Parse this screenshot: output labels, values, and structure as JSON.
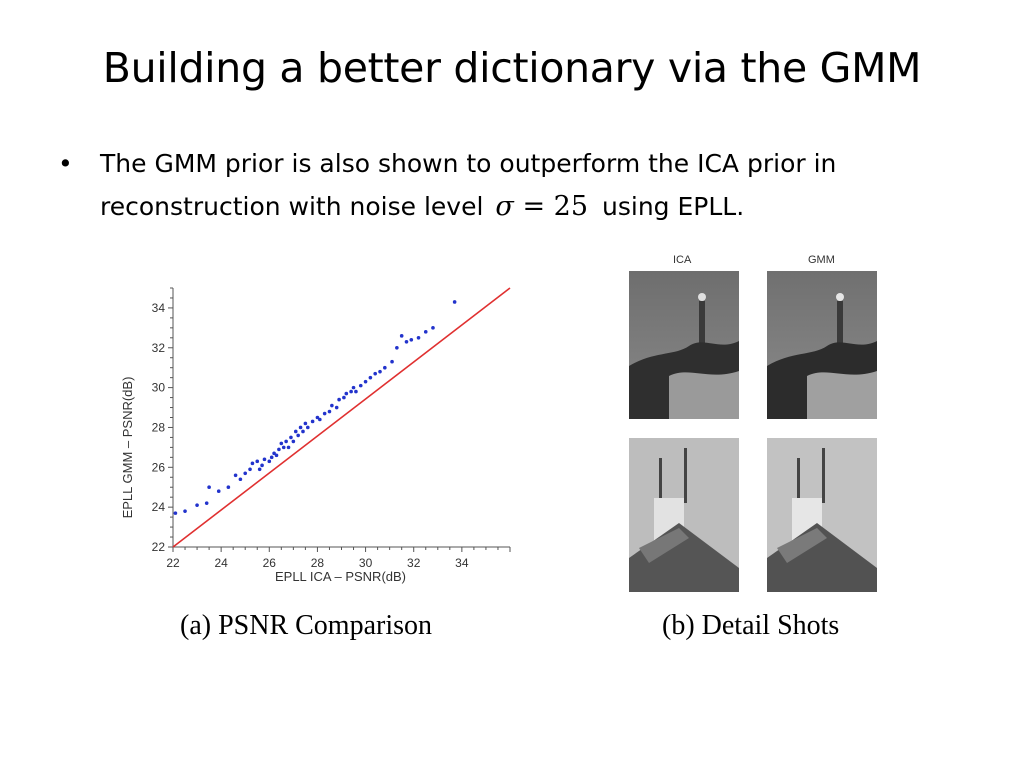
{
  "slide": {
    "title": "Building a better dictionary via the GMM",
    "bullet_symbol": "•",
    "bullet_text_before": "The GMM prior is also shown to outperform the ICA prior in reconstruction with noise level",
    "math_sigma": "σ",
    "math_rest": "= 25",
    "bullet_text_after": "using EPLL."
  },
  "figure_a": {
    "caption": "(a) PSNR Comparison"
  },
  "figure_b": {
    "caption": "(b) Detail Shots",
    "col_ica": "ICA",
    "col_gmm": "GMM"
  },
  "chart_data": {
    "type": "scatter",
    "xlabel": "EPLL ICA – PSNR(dB)",
    "ylabel": "EPLL GMM – PSNR(dB)",
    "xlim": [
      22,
      36
    ],
    "ylim": [
      22,
      35
    ],
    "xticks": [
      22,
      24,
      26,
      28,
      30,
      32,
      34
    ],
    "yticks": [
      22,
      24,
      26,
      28,
      30,
      32,
      34
    ],
    "reference_line": {
      "type": "y=x",
      "color": "#e03030"
    },
    "point_color": "#2233cc",
    "grid": false,
    "points": [
      [
        22.1,
        23.7
      ],
      [
        22.5,
        23.8
      ],
      [
        23.0,
        24.1
      ],
      [
        23.4,
        24.2
      ],
      [
        23.5,
        25.0
      ],
      [
        23.9,
        24.8
      ],
      [
        24.3,
        25.0
      ],
      [
        24.6,
        25.6
      ],
      [
        24.8,
        25.4
      ],
      [
        25.0,
        25.7
      ],
      [
        25.2,
        25.9
      ],
      [
        25.3,
        26.2
      ],
      [
        25.5,
        26.3
      ],
      [
        25.6,
        25.9
      ],
      [
        25.7,
        26.1
      ],
      [
        25.8,
        26.4
      ],
      [
        26.0,
        26.3
      ],
      [
        26.1,
        26.5
      ],
      [
        26.2,
        26.7
      ],
      [
        26.3,
        26.6
      ],
      [
        26.4,
        26.9
      ],
      [
        26.5,
        27.2
      ],
      [
        26.6,
        27.0
      ],
      [
        26.7,
        27.3
      ],
      [
        26.8,
        27.0
      ],
      [
        26.9,
        27.5
      ],
      [
        27.0,
        27.3
      ],
      [
        27.1,
        27.8
      ],
      [
        27.2,
        27.6
      ],
      [
        27.3,
        28.0
      ],
      [
        27.4,
        27.8
      ],
      [
        27.5,
        28.2
      ],
      [
        27.6,
        28.0
      ],
      [
        27.8,
        28.3
      ],
      [
        28.0,
        28.5
      ],
      [
        28.1,
        28.4
      ],
      [
        28.3,
        28.7
      ],
      [
        28.5,
        28.8
      ],
      [
        28.6,
        29.1
      ],
      [
        28.8,
        29.0
      ],
      [
        28.9,
        29.4
      ],
      [
        29.1,
        29.5
      ],
      [
        29.2,
        29.7
      ],
      [
        29.4,
        29.8
      ],
      [
        29.5,
        30.0
      ],
      [
        29.6,
        29.8
      ],
      [
        29.8,
        30.1
      ],
      [
        30.0,
        30.3
      ],
      [
        30.2,
        30.5
      ],
      [
        30.4,
        30.7
      ],
      [
        30.6,
        30.8
      ],
      [
        30.8,
        31.0
      ],
      [
        31.1,
        31.3
      ],
      [
        31.3,
        32.0
      ],
      [
        31.5,
        32.6
      ],
      [
        31.7,
        32.3
      ],
      [
        31.9,
        32.4
      ],
      [
        32.2,
        32.5
      ],
      [
        32.5,
        32.8
      ],
      [
        32.8,
        33.0
      ],
      [
        33.7,
        34.3
      ]
    ]
  }
}
